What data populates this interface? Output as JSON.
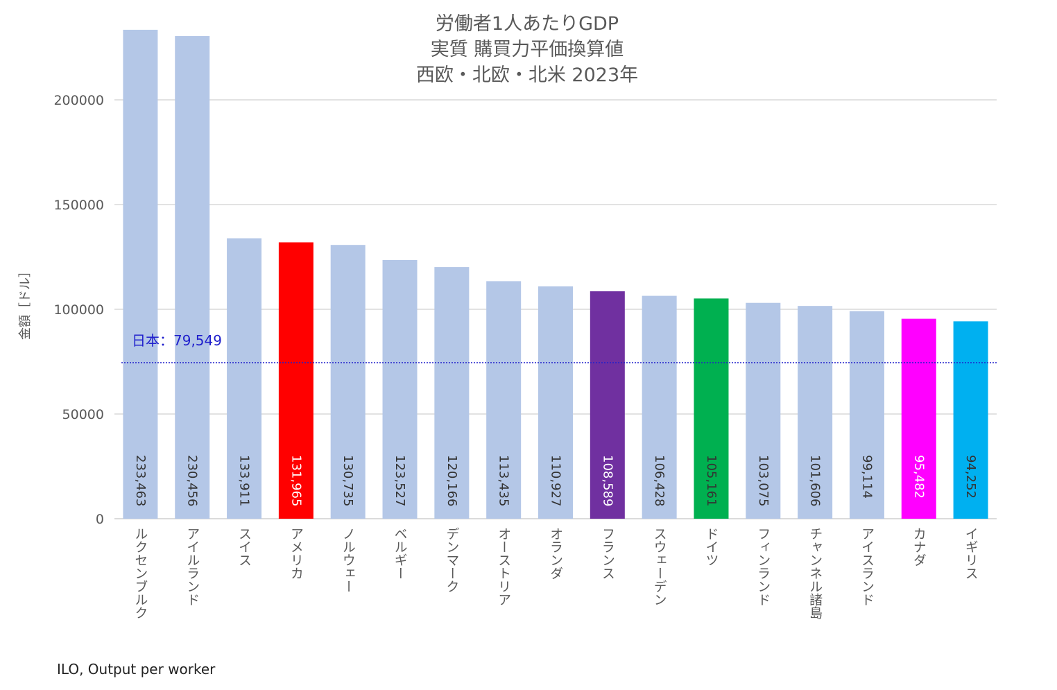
{
  "title": {
    "line1": "労働者1人あたりGDP",
    "line2": "実質 購買力平価換算値",
    "line3": "西欧・北欧・北米 2023年"
  },
  "source": "ILO, Output per worker",
  "chart_data": {
    "type": "bar",
    "title": "労働者1人あたりGDP 実質 購買力平価換算値 西欧・北欧・北米 2023年",
    "xlabel": "",
    "ylabel": "金額［ドル］",
    "ylim": [
      0,
      235000
    ],
    "yticks": [
      0,
      50000,
      100000,
      150000,
      200000
    ],
    "grid": true,
    "categories": [
      "ルクセンブルク",
      "アイルランド",
      "スイス",
      "アメリカ",
      "ノルウェー",
      "ベルギー",
      "デンマーク",
      "オーストリア",
      "オランダ",
      "フランス",
      "スウェーデン",
      "ドイツ",
      "フィンランド",
      "チャンネル諸島",
      "アイスランド",
      "カナダ",
      "イギリス"
    ],
    "values": [
      233463,
      230456,
      133911,
      131965,
      130735,
      123527,
      120166,
      113435,
      110927,
      108589,
      106428,
      105161,
      103075,
      101606,
      99114,
      95482,
      94252
    ],
    "value_labels": [
      "233,463",
      "230,456",
      "133,911",
      "131,965",
      "130,735",
      "123,527",
      "120,166",
      "113,435",
      "110,927",
      "108,589",
      "106,428",
      "105,161",
      "103,075",
      "101,606",
      "99,114",
      "95,482",
      "94,252"
    ],
    "colors": [
      "#b4c7e7",
      "#b4c7e7",
      "#b4c7e7",
      "#ff0000",
      "#b4c7e7",
      "#b4c7e7",
      "#b4c7e7",
      "#b4c7e7",
      "#b4c7e7",
      "#7030a0",
      "#b4c7e7",
      "#00b050",
      "#b4c7e7",
      "#b4c7e7",
      "#b4c7e7",
      "#ff00ff",
      "#00b0f0"
    ],
    "label_colors": [
      "#333333",
      "#333333",
      "#333333",
      "#ffffff",
      "#333333",
      "#333333",
      "#333333",
      "#333333",
      "#333333",
      "#ffffff",
      "#333333",
      "#333333",
      "#333333",
      "#333333",
      "#333333",
      "#ffffff",
      "#333333"
    ],
    "reference_line": {
      "label": "日本：79,549",
      "value": 79549,
      "color": "#1f1fcc",
      "style": "dotted"
    }
  }
}
